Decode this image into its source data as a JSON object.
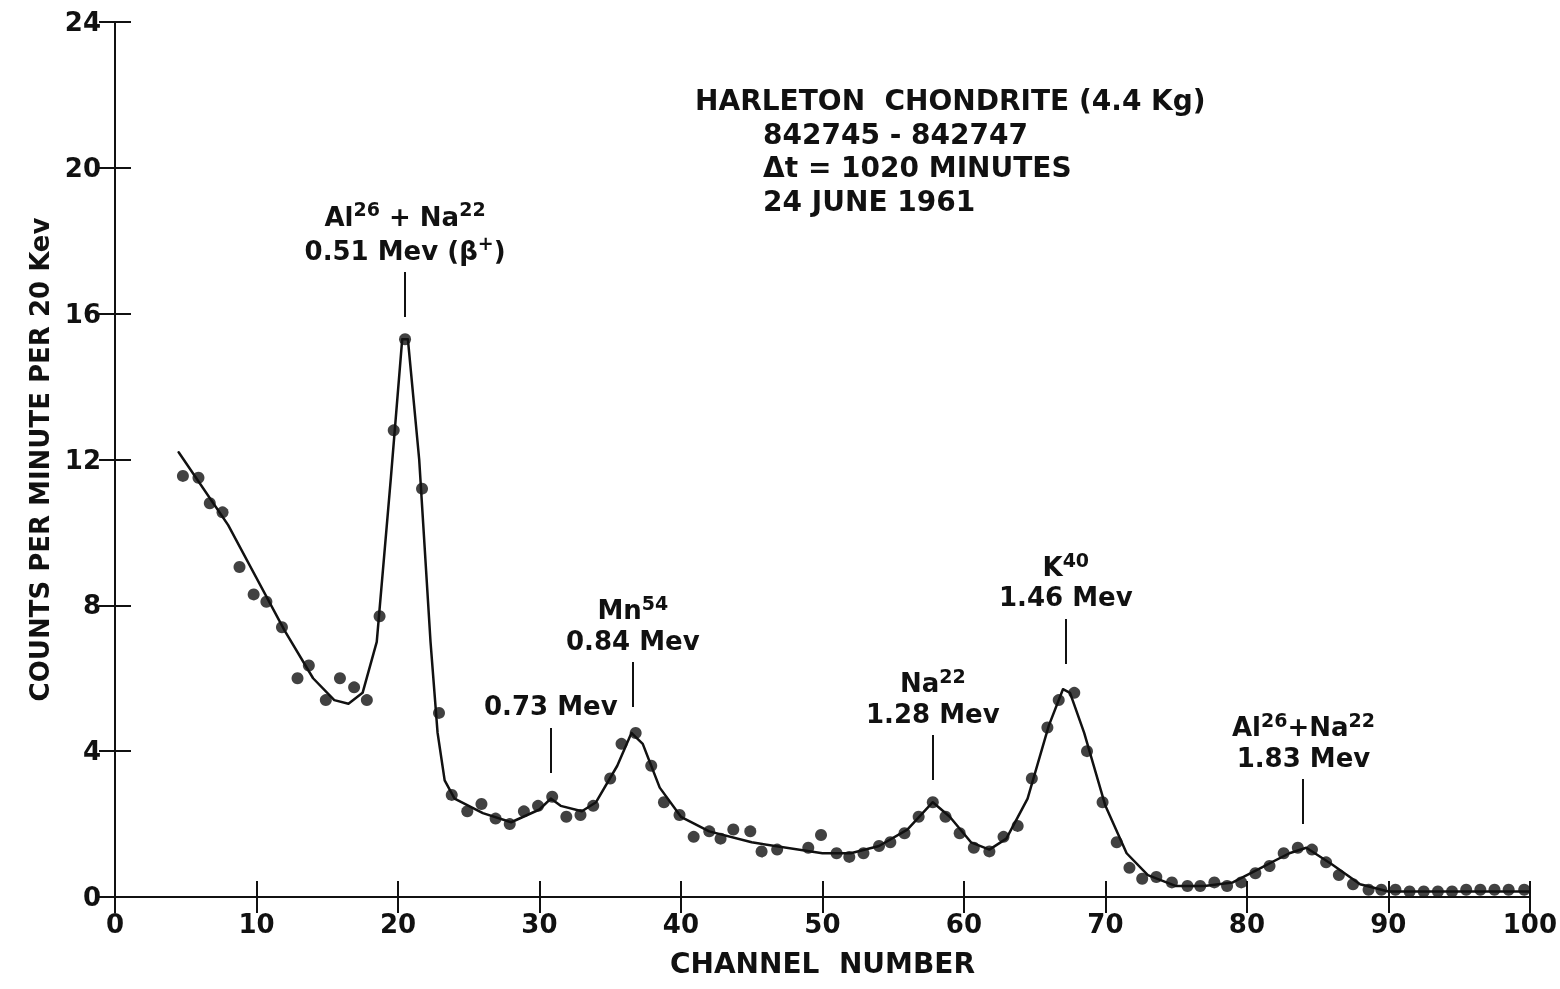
{
  "chart_data": {
    "type": "scatter",
    "xlabel": "CHANNEL  NUMBER",
    "ylabel": "COUNTS PER MINUTE PER 20 Kev",
    "xlim": [
      0,
      100
    ],
    "xticks": [
      0,
      10,
      20,
      30,
      40,
      50,
      60,
      70,
      80,
      90,
      100
    ],
    "ylim": [
      0,
      24
    ],
    "yticks": [
      0,
      4,
      8,
      12,
      16,
      20,
      24
    ],
    "grid": false,
    "annotations": [
      "HARLETON  CHONDRITE (4.4 Kg)",
      "842745 - 842747",
      "Δt = 1020 MINUTES",
      "24 JUNE 1961",
      {
        "text": "Al$^{26}$ + Na$^{22}$\n0.51 Mev (β$^{+}$)",
        "x": 20.5,
        "y": 15.3
      },
      {
        "text": "0.73 Mev",
        "x": 30.8,
        "y": 2.8
      },
      {
        "text": "Mn$^{54}$\n0.84 Mev",
        "x": 36.6,
        "y": 4.6
      },
      {
        "text": "Na$^{22}$\n1.28 Mev",
        "x": 57.8,
        "y": 2.6
      },
      {
        "text": "K$^{40}$\n1.46 Mev",
        "x": 67.2,
        "y": 5.8
      },
      {
        "text": "Al$^{26}$+Na$^{22}$\n1.83 Mev",
        "x": 84,
        "y": 1.4
      }
    ],
    "series": [
      {
        "marker": "circle",
        "color": "#111111",
        "x": [
          4.8,
          5.9,
          6.7,
          7.6,
          8.8,
          9.8,
          10.7,
          11.8,
          12.9,
          13.7,
          14.9,
          15.9,
          16.9,
          17.8,
          18.7,
          19.7,
          20.5,
          21.7,
          22.9,
          23.8,
          24.9,
          25.9,
          26.9,
          27.9,
          28.9,
          29.9,
          30.9,
          31.9,
          32.9,
          33.8,
          35.0,
          35.8,
          36.8,
          37.9,
          38.8,
          39.9,
          40.9,
          42.0,
          42.8,
          43.7,
          44.9,
          45.7,
          46.8,
          49.0,
          49.9,
          51.0,
          51.9,
          52.9,
          54.0,
          54.8,
          55.8,
          56.8,
          57.8,
          58.7,
          59.7,
          60.7,
          61.8,
          62.8,
          63.8,
          64.8,
          65.9,
          66.7,
          67.8,
          68.7,
          69.8,
          70.8,
          71.7,
          72.6,
          73.6,
          74.7,
          75.8,
          76.7,
          77.7,
          78.6,
          79.6,
          80.6,
          81.6,
          82.6,
          83.6,
          84.6,
          85.6,
          86.5,
          87.5,
          88.6,
          89.5,
          90.5,
          91.5,
          92.5,
          93.5,
          94.5,
          95.5,
          96.5,
          97.5,
          98.5,
          99.6
        ],
        "values": [
          11.55,
          11.5,
          10.8,
          10.55,
          9.05,
          8.3,
          8.1,
          7.4,
          6.0,
          6.35,
          5.4,
          6.0,
          5.75,
          5.4,
          7.7,
          12.8,
          15.3,
          11.2,
          5.05,
          2.8,
          2.35,
          2.55,
          2.15,
          2.0,
          2.35,
          2.5,
          2.75,
          2.2,
          2.25,
          2.5,
          3.25,
          4.2,
          4.5,
          3.6,
          2.6,
          2.25,
          1.65,
          1.8,
          1.6,
          1.85,
          1.8,
          1.25,
          1.3,
          1.35,
          1.7,
          1.2,
          1.1,
          1.2,
          1.4,
          1.5,
          1.75,
          2.2,
          2.6,
          2.2,
          1.75,
          1.35,
          1.25,
          1.65,
          1.95,
          3.25,
          4.65,
          5.4,
          5.6,
          4.0,
          2.6,
          1.5,
          0.8,
          0.5,
          0.55,
          0.4,
          0.3,
          0.3,
          0.4,
          0.3,
          0.4,
          0.65,
          0.85,
          1.2,
          1.35,
          1.3,
          0.95,
          0.6,
          0.35,
          0.2,
          0.2,
          0.2,
          0.15,
          0.15,
          0.15,
          0.15,
          0.2,
          0.2,
          0.2,
          0.2,
          0.2
        ]
      },
      {
        "type": "line",
        "marker": "none",
        "line_style": "solid",
        "color": "#111111",
        "x": [
          4.5,
          8,
          12,
          14,
          15.5,
          16.5,
          17.5,
          18.5,
          19.5,
          20.3,
          20.7,
          21.5,
          22.3,
          22.8,
          23.3,
          24,
          26,
          28,
          30,
          30.8,
          31.5,
          33,
          34,
          35.5,
          36.5,
          37.3,
          38.5,
          40,
          42,
          45,
          50,
          52,
          54,
          56,
          57.8,
          59,
          60.5,
          61.8,
          63,
          64.5,
          66,
          67,
          67.5,
          68.5,
          70,
          71.5,
          73,
          75,
          77,
          79,
          81,
          83,
          84.2,
          86,
          88,
          90,
          100
        ],
        "values": [
          12.2,
          10.2,
          7.3,
          6.0,
          5.4,
          5.3,
          5.6,
          7.0,
          11.5,
          15.3,
          15.3,
          12,
          7,
          4.5,
          3.2,
          2.7,
          2.3,
          2.05,
          2.4,
          2.7,
          2.5,
          2.35,
          2.6,
          3.6,
          4.5,
          4.2,
          3.0,
          2.2,
          1.8,
          1.5,
          1.2,
          1.2,
          1.4,
          1.85,
          2.6,
          2.2,
          1.5,
          1.3,
          1.6,
          2.7,
          4.7,
          5.7,
          5.6,
          4.5,
          2.5,
          1.2,
          0.6,
          0.3,
          0.3,
          0.4,
          0.8,
          1.2,
          1.35,
          0.9,
          0.35,
          0.15,
          0.15
        ]
      }
    ]
  }
}
